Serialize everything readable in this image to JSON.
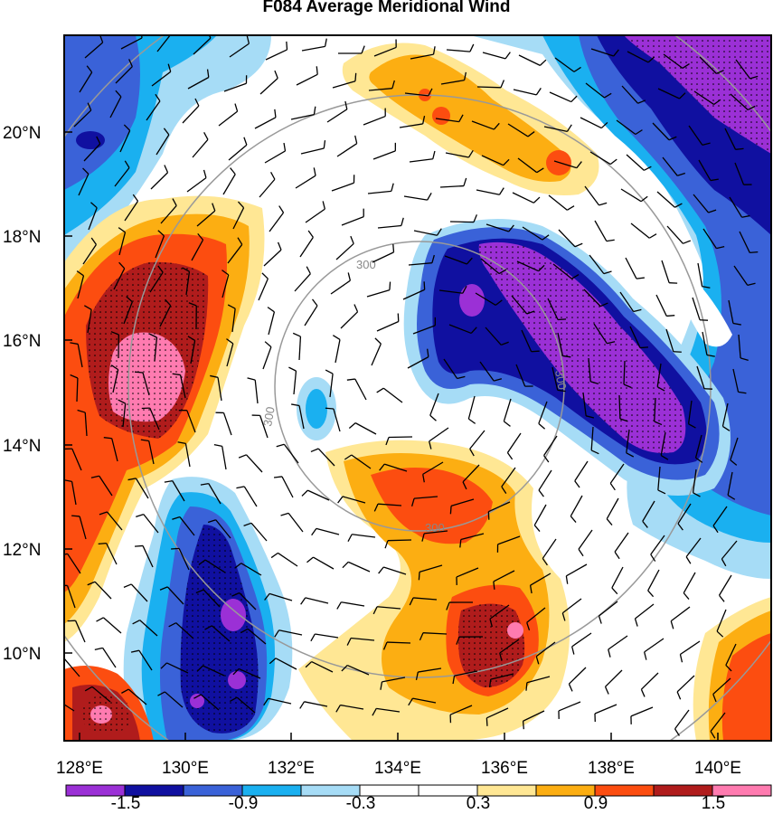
{
  "title": "F084 Average Meridional Wind",
  "y_labels": [
    "20°N",
    "18°N",
    "16°N",
    "14°N",
    "12°N",
    "10°N"
  ],
  "x_labels": [
    "128°E",
    "130°E",
    "132°E",
    "134°E",
    "136°E",
    "138°E",
    "140°E"
  ],
  "colorbar": {
    "colors": [
      "#9b30d6",
      "#1010a0",
      "#3a62d8",
      "#1ab0f0",
      "#a6dcf6",
      "#ffffff",
      "#ffffff",
      "#ffe794",
      "#fcae12",
      "#fc4d10",
      "#b01c1c",
      "#ff7bb0"
    ],
    "labels": [
      "-1.5",
      "-0.9",
      "-0.3",
      "0.3",
      "0.9",
      "1.5"
    ]
  },
  "radius_labels": [
    "300",
    "300",
    "300",
    "300"
  ],
  "colors": {
    "deep_purple": "#9b30d6",
    "navy": "#1010a0",
    "blue": "#3a62d8",
    "cyan": "#1ab0f0",
    "light_blue": "#a6dcf6",
    "light_yellow": "#ffe794",
    "orange": "#fcae12",
    "red_orange": "#fc4d10",
    "dark_red": "#b01c1c",
    "pink": "#ff7bb0"
  }
}
